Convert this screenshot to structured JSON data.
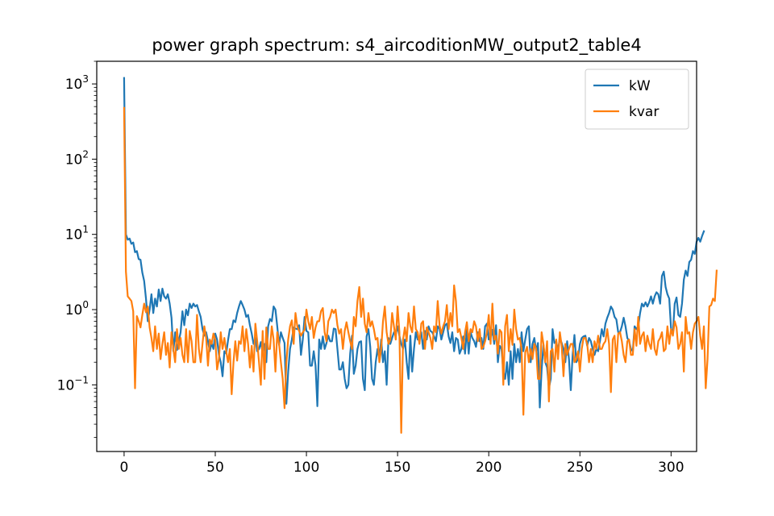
{
  "chart_data": {
    "type": "line",
    "title": "power graph spectrum: s4_aircoditionMW_output2_table4",
    "xlabel": "",
    "ylabel": "",
    "x_scale": "linear",
    "y_scale": "log",
    "xlim": [
      -15,
      314
    ],
    "ylim": [
      0.013,
      2000
    ],
    "grid": false,
    "legend_position": "top-right",
    "x_ticks": [
      {
        "value": 0,
        "label": "0"
      },
      {
        "value": 50,
        "label": "50"
      },
      {
        "value": 100,
        "label": "100"
      },
      {
        "value": 150,
        "label": "150"
      },
      {
        "value": 200,
        "label": "200"
      },
      {
        "value": 250,
        "label": "250"
      },
      {
        "value": 300,
        "label": "300"
      }
    ],
    "y_ticks": [
      {
        "value": 0.1,
        "base": "10",
        "exp": "−1"
      },
      {
        "value": 1,
        "base": "10",
        "exp": "0"
      },
      {
        "value": 10,
        "base": "10",
        "exp": "1"
      },
      {
        "value": 100,
        "base": "10",
        "exp": "2"
      },
      {
        "value": 1000,
        "base": "10",
        "exp": "3"
      }
    ],
    "series": [
      {
        "name": "kW",
        "color": "#1f77b4",
        "x_start": 0,
        "x_step": 1,
        "values": [
          1200,
          10,
          8.5,
          8.8,
          7.5,
          7.8,
          5.8,
          6,
          4.7,
          4.6,
          3.1,
          2.4,
          1.4,
          0.7,
          1,
          1.6,
          0.9,
          1.4,
          1.1,
          1.85,
          1.3,
          1.9,
          1.5,
          1.4,
          1.6,
          1.2,
          0.78,
          0.28,
          0.5,
          0.29,
          0.38,
          0.5,
          0.95,
          0.62,
          1,
          0.84,
          1.2,
          1.05,
          1.2,
          1.1,
          1.15,
          0.95,
          0.8,
          0.55,
          0.45,
          0.5,
          0.38,
          0.28,
          0.36,
          0.3,
          0.48,
          0.4,
          0.25,
          0.2,
          0.13,
          0.28,
          0.26,
          0.39,
          0.55,
          0.55,
          0.72,
          0.68,
          0.9,
          1.1,
          1.3,
          1.15,
          1,
          0.8,
          0.85,
          0.62,
          0.48,
          0.35,
          0.42,
          0.28,
          0.3,
          0.37,
          0.26,
          0.35,
          0.2,
          0.6,
          0.75,
          0.7,
          1.1,
          1,
          0.6,
          0.34,
          0.5,
          0.42,
          0.36,
          0.056,
          0.15,
          0.3,
          0.4,
          0.58,
          0.56,
          0.55,
          0.62,
          0.25,
          0.4,
          0.8,
          0.52,
          0.5,
          0.18,
          0.18,
          0.28,
          0.18,
          0.052,
          0.4,
          0.3,
          0.44,
          0.3,
          0.36,
          0.45,
          0.38,
          0.38,
          0.56,
          0.55,
          0.3,
          0.16,
          0.16,
          0.2,
          0.12,
          0.09,
          0.1,
          0.26,
          0.45,
          0.14,
          0.18,
          0.3,
          0.37,
          0.38,
          0.12,
          0.085,
          0.44,
          0.55,
          0.32,
          0.12,
          0.1,
          0.2,
          0.3,
          0.22,
          0.4,
          0.2,
          0.28,
          0.1,
          0.42,
          0.35,
          0.42,
          0.5,
          0.47,
          0.6,
          0.45,
          0.35,
          0.3,
          0.4,
          0.2,
          0.12,
          0.45,
          0.15,
          0.3,
          0.5,
          0.4,
          0.42,
          0.5,
          0.3,
          0.52,
          0.4,
          0.6,
          0.52,
          0.5,
          0.44,
          0.38,
          0.6,
          0.56,
          0.4,
          0.5,
          0.62,
          0.65,
          0.44,
          0.36,
          0.5,
          0.28,
          0.42,
          0.4,
          0.26,
          0.3,
          0.44,
          0.26,
          0.56,
          0.26,
          0.5,
          0.42,
          0.38,
          0.32,
          0.5,
          0.38,
          0.42,
          0.3,
          0.6,
          0.65,
          0.4,
          0.42,
          0.54,
          0.35,
          0.62,
          0.2,
          0.33,
          0.3,
          0.15,
          0.12,
          0.2,
          0.1,
          0.28,
          0.12,
          0.35,
          0.2,
          0.3,
          0.2,
          0.5,
          0.28,
          0.4,
          0.55,
          0.6,
          0.2,
          0.35,
          0.42,
          0.28,
          0.36,
          0.05,
          0.16,
          0.34,
          0.2,
          0.17,
          0.09,
          0.12,
          0.55,
          0.36,
          0.38,
          0.28,
          0.42,
          0.36,
          0.3,
          0.2,
          0.38,
          0.22,
          0.085,
          0.25,
          0.46,
          0.2,
          0.22,
          0.35,
          0.42,
          0.44,
          0.45,
          0.33,
          0.42,
          0.38,
          0.3,
          0.25,
          0.3,
          0.28,
          0.38,
          0.55,
          0.44,
          0.65,
          0.78,
          0.9,
          1.1,
          1,
          0.8,
          0.74,
          0.5,
          0.5,
          0.6,
          0.78,
          0.6,
          0.42,
          0.38,
          0.3,
          0.28,
          0.6,
          0.55,
          0.6,
          0.9,
          1.2,
          1.1,
          1.25,
          1.1,
          1.25,
          1.5,
          1.2,
          1.5,
          1.7,
          1.6,
          1.2,
          2.8,
          3.2,
          2,
          1.6,
          1.4,
          0.55,
          0.5,
          1.2,
          1.45,
          0.85,
          0.8,
          1.2,
          2.5,
          3.3,
          2.8,
          4.3,
          4.6,
          6,
          5.5,
          8,
          9,
          8,
          9.5,
          11
        ]
      },
      {
        "name": "kvar",
        "color": "#ff7f0e",
        "x_start": 0,
        "x_step": 1,
        "values": [
          480,
          3.2,
          1.5,
          1.4,
          1.3,
          0.95,
          0.09,
          0.82,
          0.7,
          0.58,
          0.85,
          1.2,
          0.92,
          1.1,
          0.58,
          0.42,
          0.28,
          0.6,
          0.3,
          0.48,
          0.22,
          0.35,
          0.5,
          0.25,
          0.36,
          0.17,
          0.5,
          0.3,
          0.2,
          0.55,
          0.3,
          0.42,
          0.25,
          0.2,
          0.55,
          0.2,
          0.52,
          0.38,
          0.2,
          0.2,
          0.85,
          0.3,
          0.2,
          0.35,
          0.6,
          0.42,
          0.18,
          0.4,
          0.35,
          0.48,
          0.4,
          0.16,
          0.22,
          0.5,
          0.3,
          0.42,
          0.28,
          0.2,
          0.3,
          0.075,
          0.2,
          0.38,
          0.21,
          0.38,
          0.35,
          0.6,
          0.28,
          0.55,
          0.35,
          0.17,
          0.33,
          0.15,
          0.65,
          0.38,
          0.2,
          0.1,
          0.52,
          0.12,
          0.58,
          0.3,
          0.3,
          0.6,
          0.4,
          0.15,
          0.5,
          0.35,
          0.2,
          0.12,
          0.049,
          0.2,
          0.4,
          0.6,
          0.72,
          0.35,
          0.9,
          0.6,
          0.52,
          0.45,
          0.5,
          0.54,
          1,
          0.7,
          0.55,
          0.8,
          0.42,
          0.58,
          0.7,
          0.7,
          0.95,
          1.05,
          0.5,
          0.38,
          0.7,
          0.8,
          1,
          0.9,
          1,
          0.62,
          0.48,
          0.55,
          0.3,
          0.52,
          0.68,
          0.5,
          0.38,
          0.3,
          0.8,
          0.6,
          1.3,
          2,
          0.8,
          1.4,
          0.65,
          0.5,
          0.9,
          0.6,
          0.7,
          0.55,
          0.4,
          0.42,
          0.2,
          0.3,
          0.7,
          1.1,
          0.5,
          0.35,
          0.4,
          0.9,
          0.6,
          0.4,
          1.1,
          0.5,
          0.023,
          0.4,
          0.58,
          0.38,
          0.9,
          0.6,
          0.5,
          1.1,
          0.55,
          0.5,
          0.35,
          0.65,
          0.7,
          0.3,
          0.58,
          0.5,
          0.42,
          0.3,
          0.6,
          0.5,
          1.3,
          0.62,
          0.48,
          0.6,
          0.7,
          1.15,
          0.55,
          0.9,
          0.6,
          2.1,
          1.3,
          0.5,
          0.55,
          0.42,
          0.3,
          0.5,
          0.68,
          0.38,
          0.55,
          0.5,
          0.7,
          0.6,
          0.38,
          0.55,
          0.3,
          0.32,
          0.38,
          0.5,
          0.85,
          0.35,
          1.2,
          0.4,
          0.45,
          0.26,
          0.54,
          0.5,
          0.1,
          0.6,
          0.85,
          0.28,
          0.55,
          0.34,
          1,
          0.55,
          0.4,
          0.42,
          0.3,
          0.04,
          0.27,
          0.32,
          0.2,
          0.3,
          0.22,
          0.35,
          0.3,
          0.12,
          0.12,
          0.5,
          0.35,
          0.2,
          0.38,
          0.06,
          0.28,
          0.3,
          0.15,
          0.4,
          0.22,
          0.5,
          0.33,
          0.13,
          0.35,
          0.25,
          0.3,
          0.35,
          0.35,
          0.2,
          0.22,
          0.28,
          0.15,
          0.3,
          0.42,
          0.42,
          0.35,
          0.2,
          0.3,
          0.2,
          0.38,
          0.3,
          0.45,
          0.3,
          0.3,
          0.35,
          0.38,
          0.55,
          0.35,
          0.08,
          0.4,
          0.45,
          0.2,
          0.48,
          0.5,
          0.38,
          0.25,
          0.2,
          0.38,
          0.4,
          0.25,
          0.25,
          0.55,
          0.33,
          0.8,
          0.35,
          0.45,
          0.5,
          0.28,
          0.45,
          0.35,
          0.3,
          0.55,
          0.3,
          0.25,
          0.38,
          0.42,
          0.5,
          0.28,
          0.3,
          0.6,
          0.35,
          0.55,
          0.45,
          0.7,
          0.58,
          0.3,
          0.35,
          0.5,
          0.15,
          0.8,
          0.48,
          0.5,
          0.3,
          0.5,
          0.65,
          0.7,
          0.8,
          0.45,
          0.3,
          0.6,
          0.09,
          0.22,
          1.1,
          1.15,
          1.4,
          1.3,
          3.3
        ]
      }
    ]
  }
}
